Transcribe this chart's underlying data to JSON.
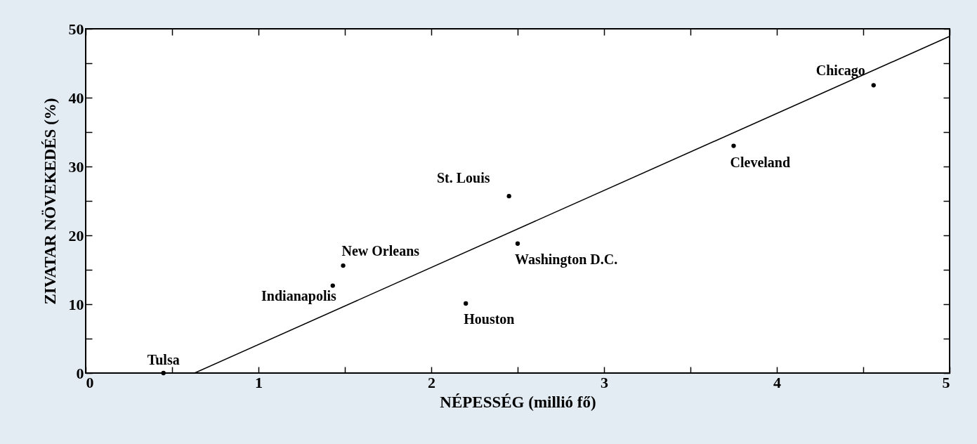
{
  "chart_data": {
    "type": "scatter",
    "xlabel": "NÉPESSÉG (millió fő)",
    "ylabel": "ZIVATAR NÖVEKEDÉS (%)",
    "series": [
      {
        "marker": "circle",
        "color": "#000000",
        "x": [
          0.45,
          1.43,
          1.49,
          2.2,
          2.45,
          2.5,
          3.75,
          4.56
        ],
        "values": [
          0,
          12.7,
          15.6,
          10.1,
          25.7,
          18.8,
          33.0,
          41.8
        ]
      },
      {
        "type": "line",
        "color": "#000000",
        "x": [
          0.63,
          5
        ],
        "values": [
          0,
          48.9
        ]
      }
    ],
    "grid": false,
    "xlim": [
      0,
      5
    ],
    "ylim": [
      0,
      50
    ],
    "xticks": [
      0,
      {
        "value": 0.5,
        "label": null
      },
      1,
      {
        "value": 1.5,
        "label": null
      },
      2,
      {
        "value": 2.5,
        "label": null
      },
      3,
      {
        "value": 3.5,
        "label": null
      },
      4,
      {
        "value": 4.5,
        "label": null
      },
      5
    ],
    "yticks": [
      0,
      {
        "value": 5,
        "label": null
      },
      10,
      {
        "value": 15,
        "label": null
      },
      20,
      {
        "value": 25,
        "label": null
      },
      30,
      {
        "value": 35,
        "label": null
      },
      40,
      {
        "value": 45,
        "label": null
      },
      50
    ],
    "annotations": [
      {
        "text": "Tulsa",
        "x": 0.45,
        "y": 0
      },
      {
        "text": "Indianapolis",
        "x": 1.43,
        "y": 12.7
      },
      {
        "text": "New Orleans",
        "x": 1.49,
        "y": 15.6
      },
      {
        "text": "Houston",
        "x": 2.2,
        "y": 10.1
      },
      {
        "text": "St. Louis",
        "x": 2.45,
        "y": 25.7
      },
      {
        "text": "Washington D.C.",
        "x": 2.5,
        "y": 18.8
      },
      {
        "text": "Cleveland",
        "x": 3.75,
        "y": 33.0
      },
      {
        "text": "Chicago",
        "x": 4.56,
        "y": 41.8
      }
    ]
  }
}
